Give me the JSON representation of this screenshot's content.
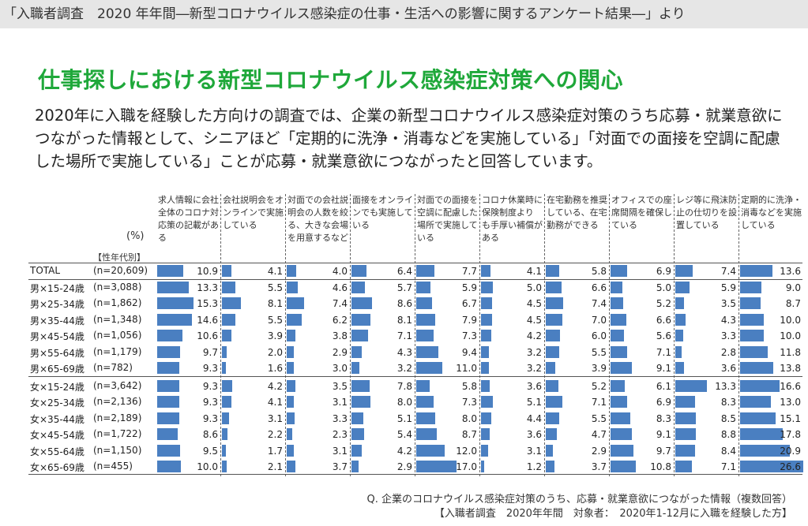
{
  "header": {
    "source": "「入職者調査　2020 年年間―新型コロナウイルス感染症の仕事・生活への影響に関するアンケート結果―」より"
  },
  "headline": "仕事探しにおける新型コロナウイルス感染症対策への関心",
  "description": "2020年に入職を経験した方向けの調査では、企業の新型コロナウイルス感染症対策のうち応募・就業意欲につながった情報として、シニアほど「定期的に洗浄・消毒などを実施している」「対面での面接を空調に配慮した場所で実施している」ことが応募・就業意欲につながったと回答しています。",
  "colors": {
    "bar": "#4a7fc1",
    "headline": "#1fa83a"
  },
  "chart_data": {
    "type": "table",
    "unit_label": "(%)",
    "attr_label": "【性年代別】",
    "categories": [
      "求人情報に会社全体のコロナ対応策の記載がある",
      "会社説明会をオンラインで実施している",
      "対面での会社説明会の人数を絞る、大きな会場を用意するなど",
      "面接をオンラインでも実施している",
      "対面での面接を空調に配慮した場所で実施している",
      "コロナ休業時に保険制度より も手厚い補償がある",
      "在宅勤務を推奨している、在宅勤務ができる",
      "オフィスでの座席間隔を確保している",
      "レジ等に飛沫防止の仕切りを設置している",
      "定期的に洗浄・消毒などを実施している"
    ],
    "rows": [
      {
        "group": "TOTAL",
        "n": "(n=20,609)",
        "values": [
          10.9,
          4.1,
          4.0,
          6.4,
          7.7,
          4.1,
          5.8,
          6.9,
          7.4,
          13.6
        ]
      },
      {
        "group": "男×15-24歳",
        "n": "(n=3,088)",
        "values": [
          13.3,
          5.5,
          4.6,
          5.7,
          5.9,
          5.0,
          6.6,
          5.0,
          5.9,
          9.0
        ]
      },
      {
        "group": "男×25-34歳",
        "n": "(n=1,862)",
        "values": [
          15.3,
          8.1,
          7.4,
          8.6,
          6.7,
          4.5,
          7.4,
          5.2,
          3.5,
          8.7
        ]
      },
      {
        "group": "男×35-44歳",
        "n": "(n=1,348)",
        "values": [
          14.6,
          5.5,
          6.2,
          8.1,
          7.9,
          4.5,
          7.0,
          6.6,
          4.3,
          10.0
        ]
      },
      {
        "group": "男×45-54歳",
        "n": "(n=1,056)",
        "values": [
          10.6,
          3.9,
          3.8,
          7.1,
          7.3,
          4.2,
          6.0,
          5.6,
          3.3,
          10.0
        ]
      },
      {
        "group": "男×55-64歳",
        "n": "(n=1,179)",
        "values": [
          9.7,
          2.0,
          2.9,
          4.3,
          9.4,
          3.2,
          5.5,
          7.1,
          2.8,
          11.8
        ]
      },
      {
        "group": "男×65-69歳",
        "n": "(n=782)",
        "values": [
          9.3,
          1.6,
          3.0,
          3.2,
          11.0,
          3.2,
          3.9,
          9.1,
          3.6,
          13.8
        ]
      },
      {
        "group": "女×15-24歳",
        "n": "(n=3,642)",
        "values": [
          9.3,
          4.2,
          3.5,
          7.8,
          5.8,
          3.6,
          5.2,
          6.1,
          13.3,
          16.6
        ]
      },
      {
        "group": "女×25-34歳",
        "n": "(n=2,136)",
        "values": [
          9.3,
          4.1,
          3.1,
          8.0,
          7.3,
          5.1,
          7.1,
          6.9,
          8.3,
          13.0
        ]
      },
      {
        "group": "女×35-44歳",
        "n": "(n=2,189)",
        "values": [
          9.3,
          3.1,
          3.3,
          5.1,
          8.0,
          4.4,
          5.5,
          8.3,
          8.5,
          15.1
        ]
      },
      {
        "group": "女×45-54歳",
        "n": "(n=1,722)",
        "values": [
          8.6,
          2.2,
          2.3,
          5.4,
          8.7,
          3.6,
          4.7,
          9.1,
          8.8,
          17.8
        ]
      },
      {
        "group": "女×55-64歳",
        "n": "(n=1,150)",
        "values": [
          9.5,
          1.7,
          3.1,
          4.2,
          12.0,
          3.1,
          2.9,
          9.7,
          8.4,
          20.9
        ]
      },
      {
        "group": "女×65-69歳",
        "n": "(n=455)",
        "values": [
          10.0,
          2.1,
          3.7,
          2.9,
          17.0,
          1.2,
          3.7,
          10.8,
          7.1,
          26.6
        ]
      }
    ]
  },
  "footnotes": {
    "question": "Q. 企業のコロナウイルス感染症対策のうち、応募・就業意欲につながった情報（複数回答）",
    "source": "【入職者調査　2020年年間　対象者：　2020年1-12月に入職を経験した方】"
  }
}
